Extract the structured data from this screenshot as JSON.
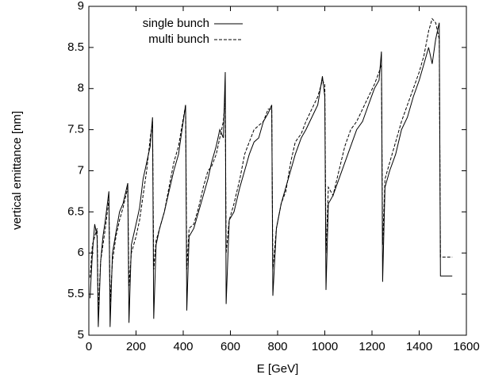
{
  "chart_data": {
    "type": "line",
    "xlabel": "E [GeV]",
    "ylabel": "vertical emittance [nm]",
    "x": [
      5,
      15,
      25,
      35,
      40,
      50,
      60,
      70,
      85,
      90,
      100,
      115,
      130,
      145,
      165,
      170,
      180,
      200,
      215,
      230,
      245,
      260,
      270,
      275,
      285,
      300,
      320,
      340,
      360,
      380,
      395,
      410,
      415,
      425,
      445,
      465,
      485,
      505,
      520,
      540,
      555,
      570,
      578,
      582,
      595,
      615,
      640,
      660,
      680,
      700,
      720,
      740,
      760,
      775,
      780,
      795,
      815,
      835,
      855,
      875,
      900,
      920,
      945,
      970,
      990,
      1000,
      1005,
      1015,
      1035,
      1060,
      1085,
      1110,
      1135,
      1160,
      1185,
      1210,
      1230,
      1240,
      1245,
      1255,
      1275,
      1300,
      1325,
      1350,
      1375,
      1400,
      1420,
      1440,
      1455,
      1470,
      1485,
      1490,
      1540
    ],
    "series": [
      {
        "name": "single bunch",
        "color": "#000000",
        "dash": false,
        "values": [
          5.45,
          6.0,
          6.35,
          6.2,
          5.1,
          5.9,
          6.2,
          6.4,
          6.75,
          5.1,
          6.0,
          6.25,
          6.5,
          6.6,
          6.85,
          5.15,
          6.1,
          6.35,
          6.55,
          6.9,
          7.1,
          7.3,
          7.65,
          5.2,
          6.1,
          6.3,
          6.5,
          6.75,
          7.0,
          7.2,
          7.5,
          7.8,
          5.3,
          6.2,
          6.3,
          6.5,
          6.7,
          6.9,
          7.1,
          7.3,
          7.5,
          7.4,
          8.2,
          5.38,
          6.4,
          6.5,
          6.8,
          7.0,
          7.2,
          7.35,
          7.4,
          7.6,
          7.7,
          7.8,
          5.48,
          6.3,
          6.6,
          6.8,
          7.0,
          7.2,
          7.4,
          7.5,
          7.65,
          7.8,
          8.15,
          7.9,
          5.55,
          6.6,
          6.7,
          6.9,
          7.1,
          7.3,
          7.5,
          7.6,
          7.8,
          8.0,
          8.1,
          8.45,
          5.65,
          6.8,
          7.0,
          7.2,
          7.5,
          7.65,
          7.9,
          8.1,
          8.3,
          8.5,
          8.3,
          8.6,
          8.8,
          5.72,
          5.72
        ]
      },
      {
        "name": "multi bunch",
        "color": "#000000",
        "dash": true,
        "values": [
          5.7,
          6.1,
          6.2,
          6.3,
          5.3,
          5.9,
          6.1,
          6.3,
          6.65,
          5.4,
          5.9,
          6.2,
          6.4,
          6.55,
          6.8,
          5.6,
          6.0,
          6.2,
          6.4,
          6.7,
          7.0,
          7.4,
          7.6,
          5.8,
          6.15,
          6.3,
          6.5,
          6.8,
          7.1,
          7.3,
          7.55,
          7.8,
          5.8,
          6.3,
          6.35,
          6.55,
          6.8,
          7.0,
          7.05,
          7.2,
          7.4,
          7.6,
          7.9,
          6.0,
          6.4,
          6.6,
          6.9,
          7.2,
          7.35,
          7.5,
          7.55,
          7.6,
          7.75,
          7.75,
          5.8,
          6.3,
          6.6,
          6.75,
          7.1,
          7.35,
          7.45,
          7.6,
          7.75,
          7.9,
          8.1,
          8.05,
          6.0,
          6.8,
          6.7,
          7.0,
          7.3,
          7.5,
          7.6,
          7.75,
          7.9,
          8.05,
          8.2,
          8.3,
          6.1,
          6.9,
          7.1,
          7.35,
          7.6,
          7.8,
          8.0,
          8.2,
          8.4,
          8.7,
          8.85,
          8.8,
          8.6,
          5.95,
          5.95
        ]
      }
    ],
    "xlim": [
      0,
      1600
    ],
    "xticks": [
      0,
      200,
      400,
      600,
      800,
      1000,
      1200,
      1400,
      1600
    ],
    "ylim": [
      5,
      9
    ],
    "yticks": [
      5,
      5.5,
      6,
      6.5,
      7,
      7.5,
      8,
      8.5,
      9
    ],
    "legend": "upper left"
  }
}
